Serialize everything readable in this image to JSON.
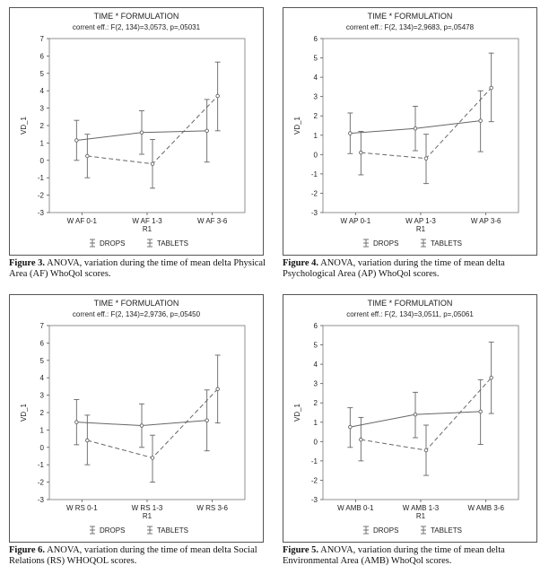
{
  "charts": [
    {
      "caption_label": "Figure 3.",
      "caption_text": "ANOVA, variation during the time of mean delta Physical Area (AF) WhoQol scores.",
      "chart_data": {
        "type": "line",
        "title": "TIME * FORMULATION",
        "subtitle": "corrent eff.: F(2, 134)=3,0573, p=,05031",
        "xlabel": "R1",
        "ylabel": "VD_1",
        "categories": [
          "W AF 0-1",
          "W AF 1-3",
          "W AF 3-6"
        ],
        "ylim": [
          -3,
          7
        ],
        "yticks": [
          "-3",
          "-2",
          "-1",
          "0",
          "1",
          "2",
          "3",
          "4",
          "5",
          "6",
          "7"
        ],
        "grid": false,
        "legend_position": "bottom",
        "series": [
          {
            "name": "DROPS",
            "style": "solid",
            "values": [
              1.15,
              1.6,
              1.7
            ],
            "lower": [
              0.0,
              0.35,
              -0.1
            ],
            "upper": [
              2.3,
              2.85,
              3.5
            ]
          },
          {
            "name": "TABLETS",
            "style": "dashed",
            "values": [
              0.25,
              -0.2,
              3.7
            ],
            "lower": [
              -1.0,
              -1.6,
              1.7
            ],
            "upper": [
              1.5,
              1.2,
              5.65
            ]
          }
        ]
      }
    },
    {
      "caption_label": "Figure 4.",
      "caption_text": "ANOVA, variation during the time of mean delta Psychological Area (AP) WhoQol scores.",
      "chart_data": {
        "type": "line",
        "title": "TIME * FORMULATION",
        "subtitle": "corrent eff.: F(2, 134)=2,9683, p=,05478",
        "xlabel": "R1",
        "ylabel": "VD_1",
        "categories": [
          "W AP 0-1",
          "W AP 1-3",
          "W AP 3-6"
        ],
        "ylim": [
          -3,
          6
        ],
        "yticks": [
          "-3",
          "-2",
          "-1",
          "0",
          "1",
          "2",
          "3",
          "4",
          "5",
          "6"
        ],
        "grid": false,
        "legend_position": "bottom",
        "series": [
          {
            "name": "DROPS",
            "style": "solid",
            "values": [
              1.1,
              1.35,
              1.75
            ],
            "lower": [
              0.05,
              0.2,
              0.15
            ],
            "upper": [
              2.15,
              2.5,
              3.3
            ]
          },
          {
            "name": "TABLETS",
            "style": "dashed",
            "values": [
              0.1,
              -0.2,
              3.45
            ],
            "lower": [
              -1.05,
              -1.5,
              1.7
            ],
            "upper": [
              1.2,
              1.05,
              5.25
            ]
          }
        ]
      }
    },
    {
      "caption_label": "Figure 6.",
      "caption_text": "ANOVA, variation during the time of mean delta Social Relations (RS) WHOQOL scores.",
      "chart_data": {
        "type": "line",
        "title": "TIME * FORMULATION",
        "subtitle": "corrent eff.: F(2, 134)=2,9736, p=,05450",
        "xlabel": "R1",
        "ylabel": "VD_1",
        "categories": [
          "W RS 0-1",
          "W RS 1-3",
          "W RS 3-6"
        ],
        "ylim": [
          -3,
          7
        ],
        "yticks": [
          "-3",
          "-2",
          "-1",
          "0",
          "1",
          "2",
          "3",
          "4",
          "5",
          "6",
          "7"
        ],
        "grid": false,
        "legend_position": "bottom",
        "series": [
          {
            "name": "DROPS",
            "style": "solid",
            "values": [
              1.45,
              1.25,
              1.55
            ],
            "lower": [
              0.15,
              0.0,
              -0.2
            ],
            "upper": [
              2.75,
              2.5,
              3.3
            ]
          },
          {
            "name": "TABLETS",
            "style": "dashed",
            "values": [
              0.4,
              -0.6,
              3.35
            ],
            "lower": [
              -1.0,
              -2.0,
              1.4
            ],
            "upper": [
              1.85,
              0.7,
              5.3
            ]
          }
        ]
      }
    },
    {
      "caption_label": "Figure 5.",
      "caption_text": "ANOVA, variation during the time of mean delta Environmental Area (AMB) WhoQol scores.",
      "chart_data": {
        "type": "line",
        "title": "TIME * FORMULATION",
        "subtitle": "corrent eff.: F(2, 134)=3,0511, p=,05061",
        "xlabel": "R1",
        "ylabel": "VD_1",
        "categories": [
          "W AMB 0-1",
          "W AMB 1-3",
          "W AMB 3-6"
        ],
        "ylim": [
          -3,
          6
        ],
        "yticks": [
          "-3",
          "-2",
          "-1",
          "0",
          "1",
          "2",
          "3",
          "4",
          "5",
          "6"
        ],
        "grid": false,
        "legend_position": "bottom",
        "series": [
          {
            "name": "DROPS",
            "style": "solid",
            "values": [
              0.75,
              1.4,
              1.55
            ],
            "lower": [
              -0.3,
              0.2,
              -0.15
            ],
            "upper": [
              1.75,
              2.55,
              3.2
            ]
          },
          {
            "name": "TABLETS",
            "style": "dashed",
            "values": [
              0.1,
              -0.45,
              3.3
            ],
            "lower": [
              -1.0,
              -1.75,
              1.45
            ],
            "upper": [
              1.25,
              0.85,
              5.15
            ]
          }
        ]
      }
    }
  ]
}
